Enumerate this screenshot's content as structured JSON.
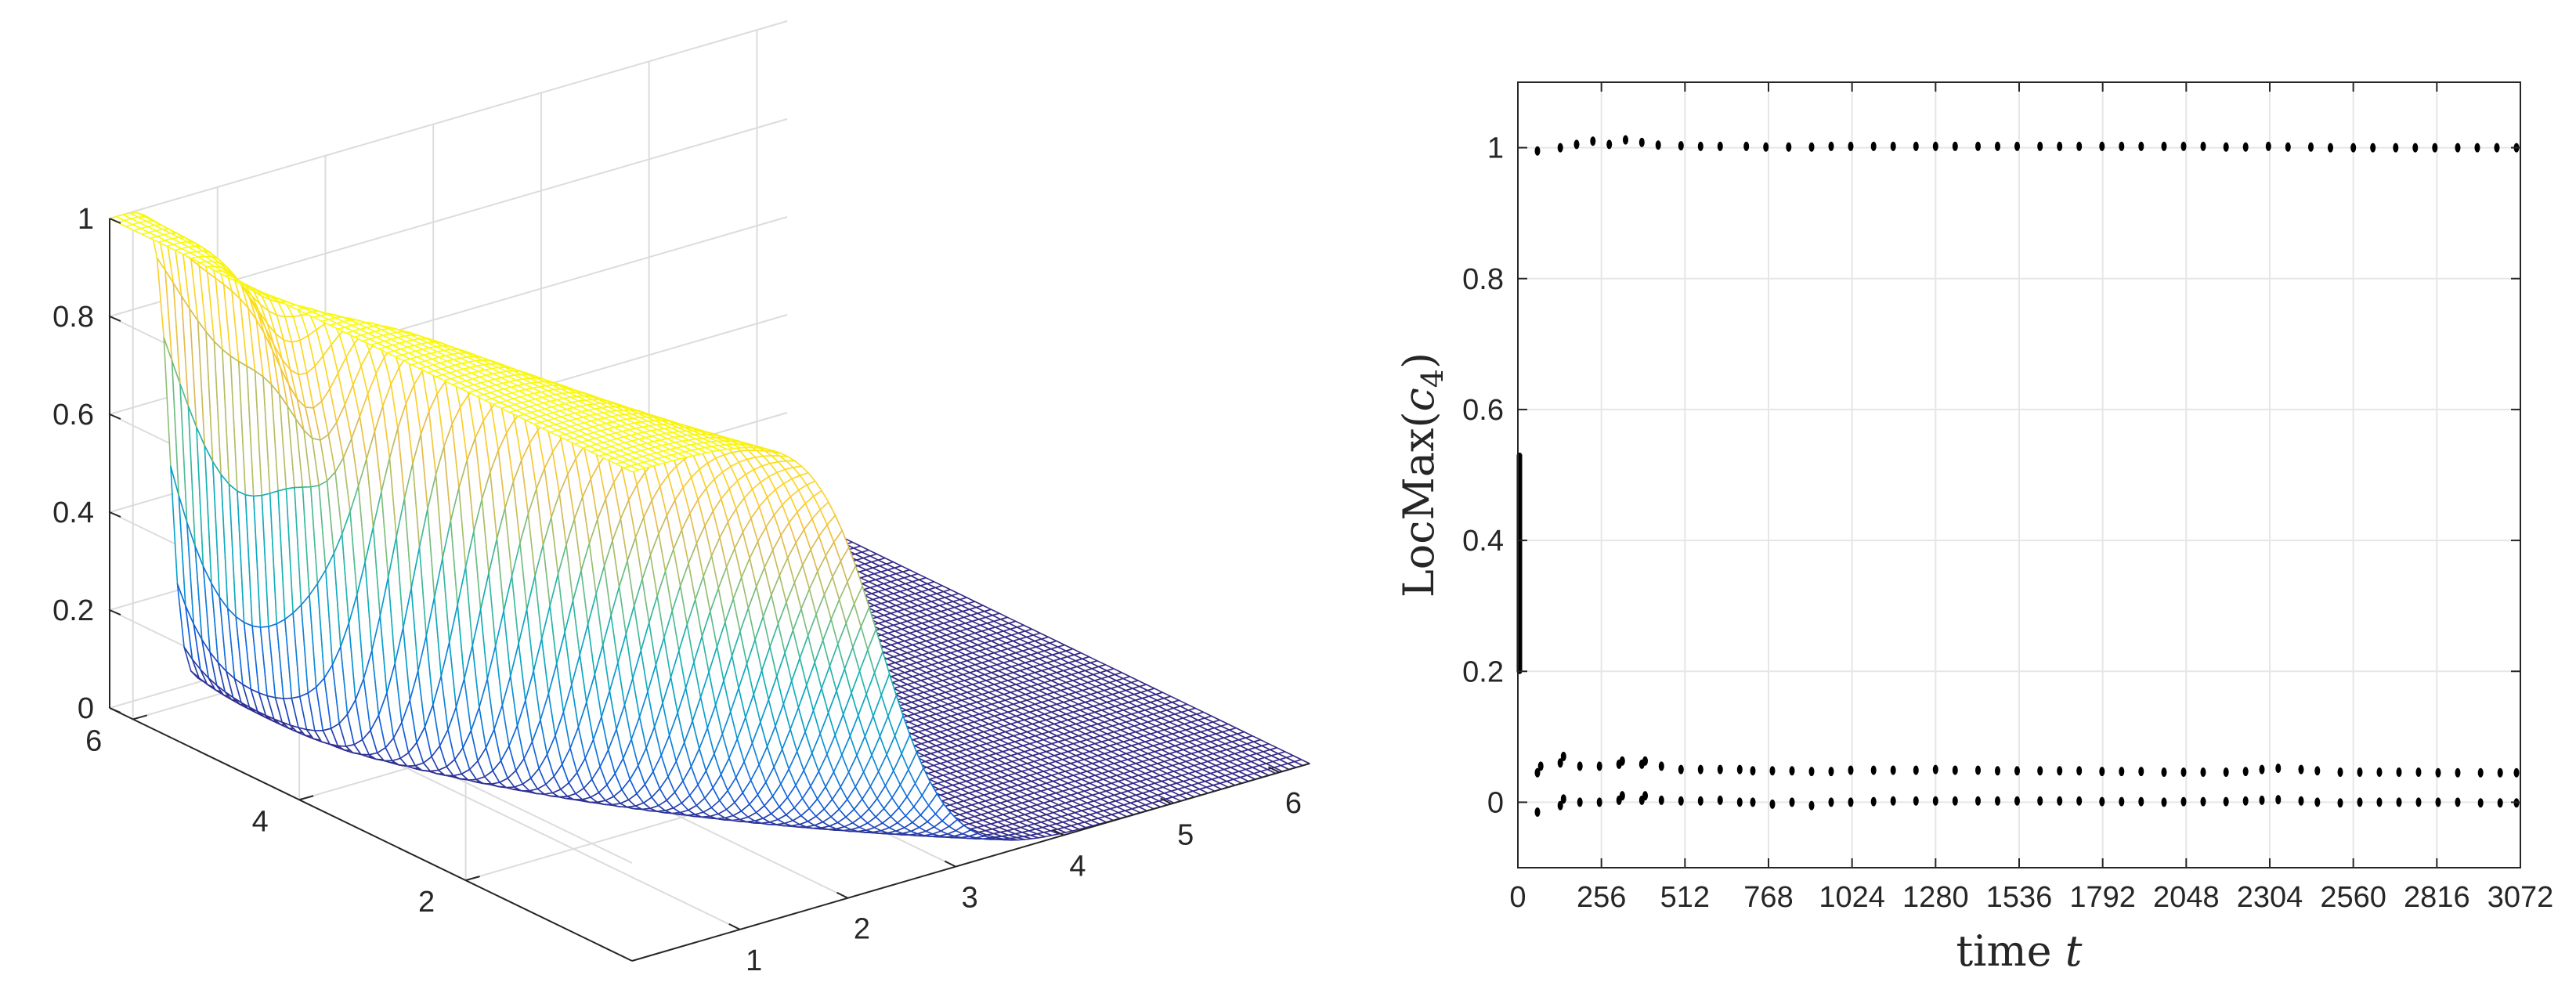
{
  "chart_data": [
    {
      "type": "surface",
      "colormap": "parula",
      "grid": true,
      "x_ticks": [
        "1",
        "2",
        "3",
        "4",
        "5",
        "6"
      ],
      "y_ticks": [
        "2",
        "4",
        "6"
      ],
      "z_ticks": [
        "0",
        "0.2",
        "0.4",
        "0.6",
        "0.8",
        "1"
      ],
      "xlim": [
        0,
        6.28
      ],
      "ylim": [
        0,
        6.28
      ],
      "zlim": [
        0,
        1
      ],
      "description_values": {
        "plateau_level": 1,
        "base_level": 0,
        "front_x": 0.5,
        "bumps": [
          {
            "x": 3.0,
            "y": 1.6,
            "height": 0.1
          },
          {
            "x": 3.7,
            "y": 4.4,
            "height": 0.08
          }
        ]
      }
    },
    {
      "type": "scatter",
      "xlabel": "time",
      "xlabel_var": "t",
      "ylabel": "LocMax(",
      "ylabel_var": "c",
      "ylabel_sub": "4",
      "ylabel_close": ")",
      "xlim": [
        0,
        3072
      ],
      "ylim": [
        -0.1,
        1.1
      ],
      "x_ticks": [
        "0",
        "256",
        "512",
        "768",
        "1024",
        "1280",
        "1536",
        "1792",
        "2048",
        "2304",
        "2560",
        "2816",
        "3072"
      ],
      "x_tick_values": [
        0,
        256,
        512,
        768,
        1024,
        1280,
        1536,
        1792,
        2048,
        2304,
        2560,
        2816,
        3072
      ],
      "y_ticks": [
        "0",
        "0.2",
        "0.4",
        "0.6",
        "0.8",
        "1"
      ],
      "y_tick_values": [
        0,
        0.2,
        0.4,
        0.6,
        0.8,
        1
      ],
      "grid": true,
      "marker_color": "#000000",
      "initial_spread": {
        "x": 0,
        "ymin": 0.2,
        "ymax": 0.53
      },
      "series": [
        {
          "values": [
            [
              60,
              0.995
            ],
            [
              130,
              1.0
            ],
            [
              180,
              1.005
            ],
            [
              230,
              1.01
            ],
            [
              280,
              1.005
            ],
            [
              330,
              1.012
            ],
            [
              380,
              1.008
            ],
            [
              430,
              1.004
            ],
            [
              500,
              1.003
            ],
            [
              560,
              1.002
            ],
            [
              620,
              1.002
            ],
            [
              700,
              1.002
            ],
            [
              760,
              1.001
            ],
            [
              830,
              1.001
            ],
            [
              900,
              1.001
            ],
            [
              960,
              1.002
            ],
            [
              1020,
              1.002
            ],
            [
              1090,
              1.002
            ],
            [
              1150,
              1.002
            ],
            [
              1220,
              1.002
            ],
            [
              1280,
              1.002
            ],
            [
              1340,
              1.002
            ],
            [
              1410,
              1.002
            ],
            [
              1470,
              1.002
            ],
            [
              1530,
              1.002
            ],
            [
              1600,
              1.002
            ],
            [
              1660,
              1.002
            ],
            [
              1720,
              1.002
            ],
            [
              1790,
              1.002
            ],
            [
              1850,
              1.002
            ],
            [
              1910,
              1.002
            ],
            [
              1980,
              1.002
            ],
            [
              2040,
              1.002
            ],
            [
              2100,
              1.002
            ],
            [
              2170,
              1.001
            ],
            [
              2230,
              1.001
            ],
            [
              2300,
              1.002
            ],
            [
              2360,
              1.001
            ],
            [
              2430,
              1.001
            ],
            [
              2490,
              1.0
            ],
            [
              2560,
              1.0
            ],
            [
              2620,
              1.0
            ],
            [
              2690,
              1.0
            ],
            [
              2750,
              1.0
            ],
            [
              2810,
              1.0
            ],
            [
              2880,
              1.0
            ],
            [
              2940,
              1.0
            ],
            [
              3000,
              1.0
            ],
            [
              3060,
              1.0
            ]
          ]
        },
        {
          "values": [
            [
              60,
              0.045
            ],
            [
              70,
              0.055
            ],
            [
              130,
              0.06
            ],
            [
              140,
              0.07
            ],
            [
              190,
              0.055
            ],
            [
              250,
              0.055
            ],
            [
              310,
              0.058
            ],
            [
              320,
              0.063
            ],
            [
              380,
              0.058
            ],
            [
              390,
              0.063
            ],
            [
              440,
              0.055
            ],
            [
              500,
              0.05
            ],
            [
              560,
              0.05
            ],
            [
              620,
              0.05
            ],
            [
              680,
              0.05
            ],
            [
              720,
              0.048
            ],
            [
              780,
              0.048
            ],
            [
              840,
              0.048
            ],
            [
              900,
              0.047
            ],
            [
              960,
              0.047
            ],
            [
              1020,
              0.049
            ],
            [
              1090,
              0.049
            ],
            [
              1150,
              0.049
            ],
            [
              1220,
              0.049
            ],
            [
              1280,
              0.05
            ],
            [
              1340,
              0.049
            ],
            [
              1410,
              0.049
            ],
            [
              1470,
              0.048
            ],
            [
              1530,
              0.048
            ],
            [
              1600,
              0.048
            ],
            [
              1660,
              0.048
            ],
            [
              1720,
              0.048
            ],
            [
              1790,
              0.047
            ],
            [
              1850,
              0.047
            ],
            [
              1910,
              0.047
            ],
            [
              1980,
              0.046
            ],
            [
              2040,
              0.046
            ],
            [
              2100,
              0.046
            ],
            [
              2170,
              0.046
            ],
            [
              2230,
              0.047
            ],
            [
              2280,
              0.05
            ],
            [
              2330,
              0.052
            ],
            [
              2400,
              0.05
            ],
            [
              2450,
              0.048
            ],
            [
              2520,
              0.046
            ],
            [
              2580,
              0.046
            ],
            [
              2640,
              0.046
            ],
            [
              2700,
              0.046
            ],
            [
              2760,
              0.046
            ],
            [
              2820,
              0.045
            ],
            [
              2880,
              0.045
            ],
            [
              2950,
              0.045
            ],
            [
              3010,
              0.045
            ],
            [
              3060,
              0.045
            ]
          ]
        },
        {
          "values": [
            [
              60,
              -0.015
            ],
            [
              130,
              -0.005
            ],
            [
              140,
              0.005
            ],
            [
              190,
              0.0
            ],
            [
              250,
              0.0
            ],
            [
              310,
              0.003
            ],
            [
              320,
              0.01
            ],
            [
              380,
              0.003
            ],
            [
              390,
              0.01
            ],
            [
              440,
              0.003
            ],
            [
              500,
              0.002
            ],
            [
              560,
              0.002
            ],
            [
              620,
              0.003
            ],
            [
              680,
              0.0
            ],
            [
              720,
              0.0
            ],
            [
              780,
              -0.003
            ],
            [
              840,
              0.0
            ],
            [
              900,
              -0.005
            ],
            [
              960,
              0.0
            ],
            [
              1020,
              0.0
            ],
            [
              1090,
              0.001
            ],
            [
              1150,
              0.002
            ],
            [
              1220,
              0.002
            ],
            [
              1280,
              0.002
            ],
            [
              1340,
              0.002
            ],
            [
              1410,
              0.002
            ],
            [
              1470,
              0.002
            ],
            [
              1530,
              0.002
            ],
            [
              1600,
              0.002
            ],
            [
              1660,
              0.002
            ],
            [
              1720,
              0.002
            ],
            [
              1790,
              0.001
            ],
            [
              1850,
              0.001
            ],
            [
              1910,
              0.001
            ],
            [
              1980,
              0.0
            ],
            [
              2040,
              0.001
            ],
            [
              2100,
              0.001
            ],
            [
              2170,
              0.001
            ],
            [
              2230,
              0.002
            ],
            [
              2280,
              0.003
            ],
            [
              2330,
              0.004
            ],
            [
              2400,
              0.002
            ],
            [
              2450,
              0.0
            ],
            [
              2520,
              -0.001
            ],
            [
              2580,
              0.0
            ],
            [
              2640,
              0.0
            ],
            [
              2700,
              0.0
            ],
            [
              2760,
              0.0
            ],
            [
              2820,
              0.0
            ],
            [
              2880,
              0.0
            ],
            [
              2950,
              -0.001
            ],
            [
              3010,
              -0.001
            ],
            [
              3060,
              -0.001
            ]
          ]
        }
      ]
    }
  ]
}
